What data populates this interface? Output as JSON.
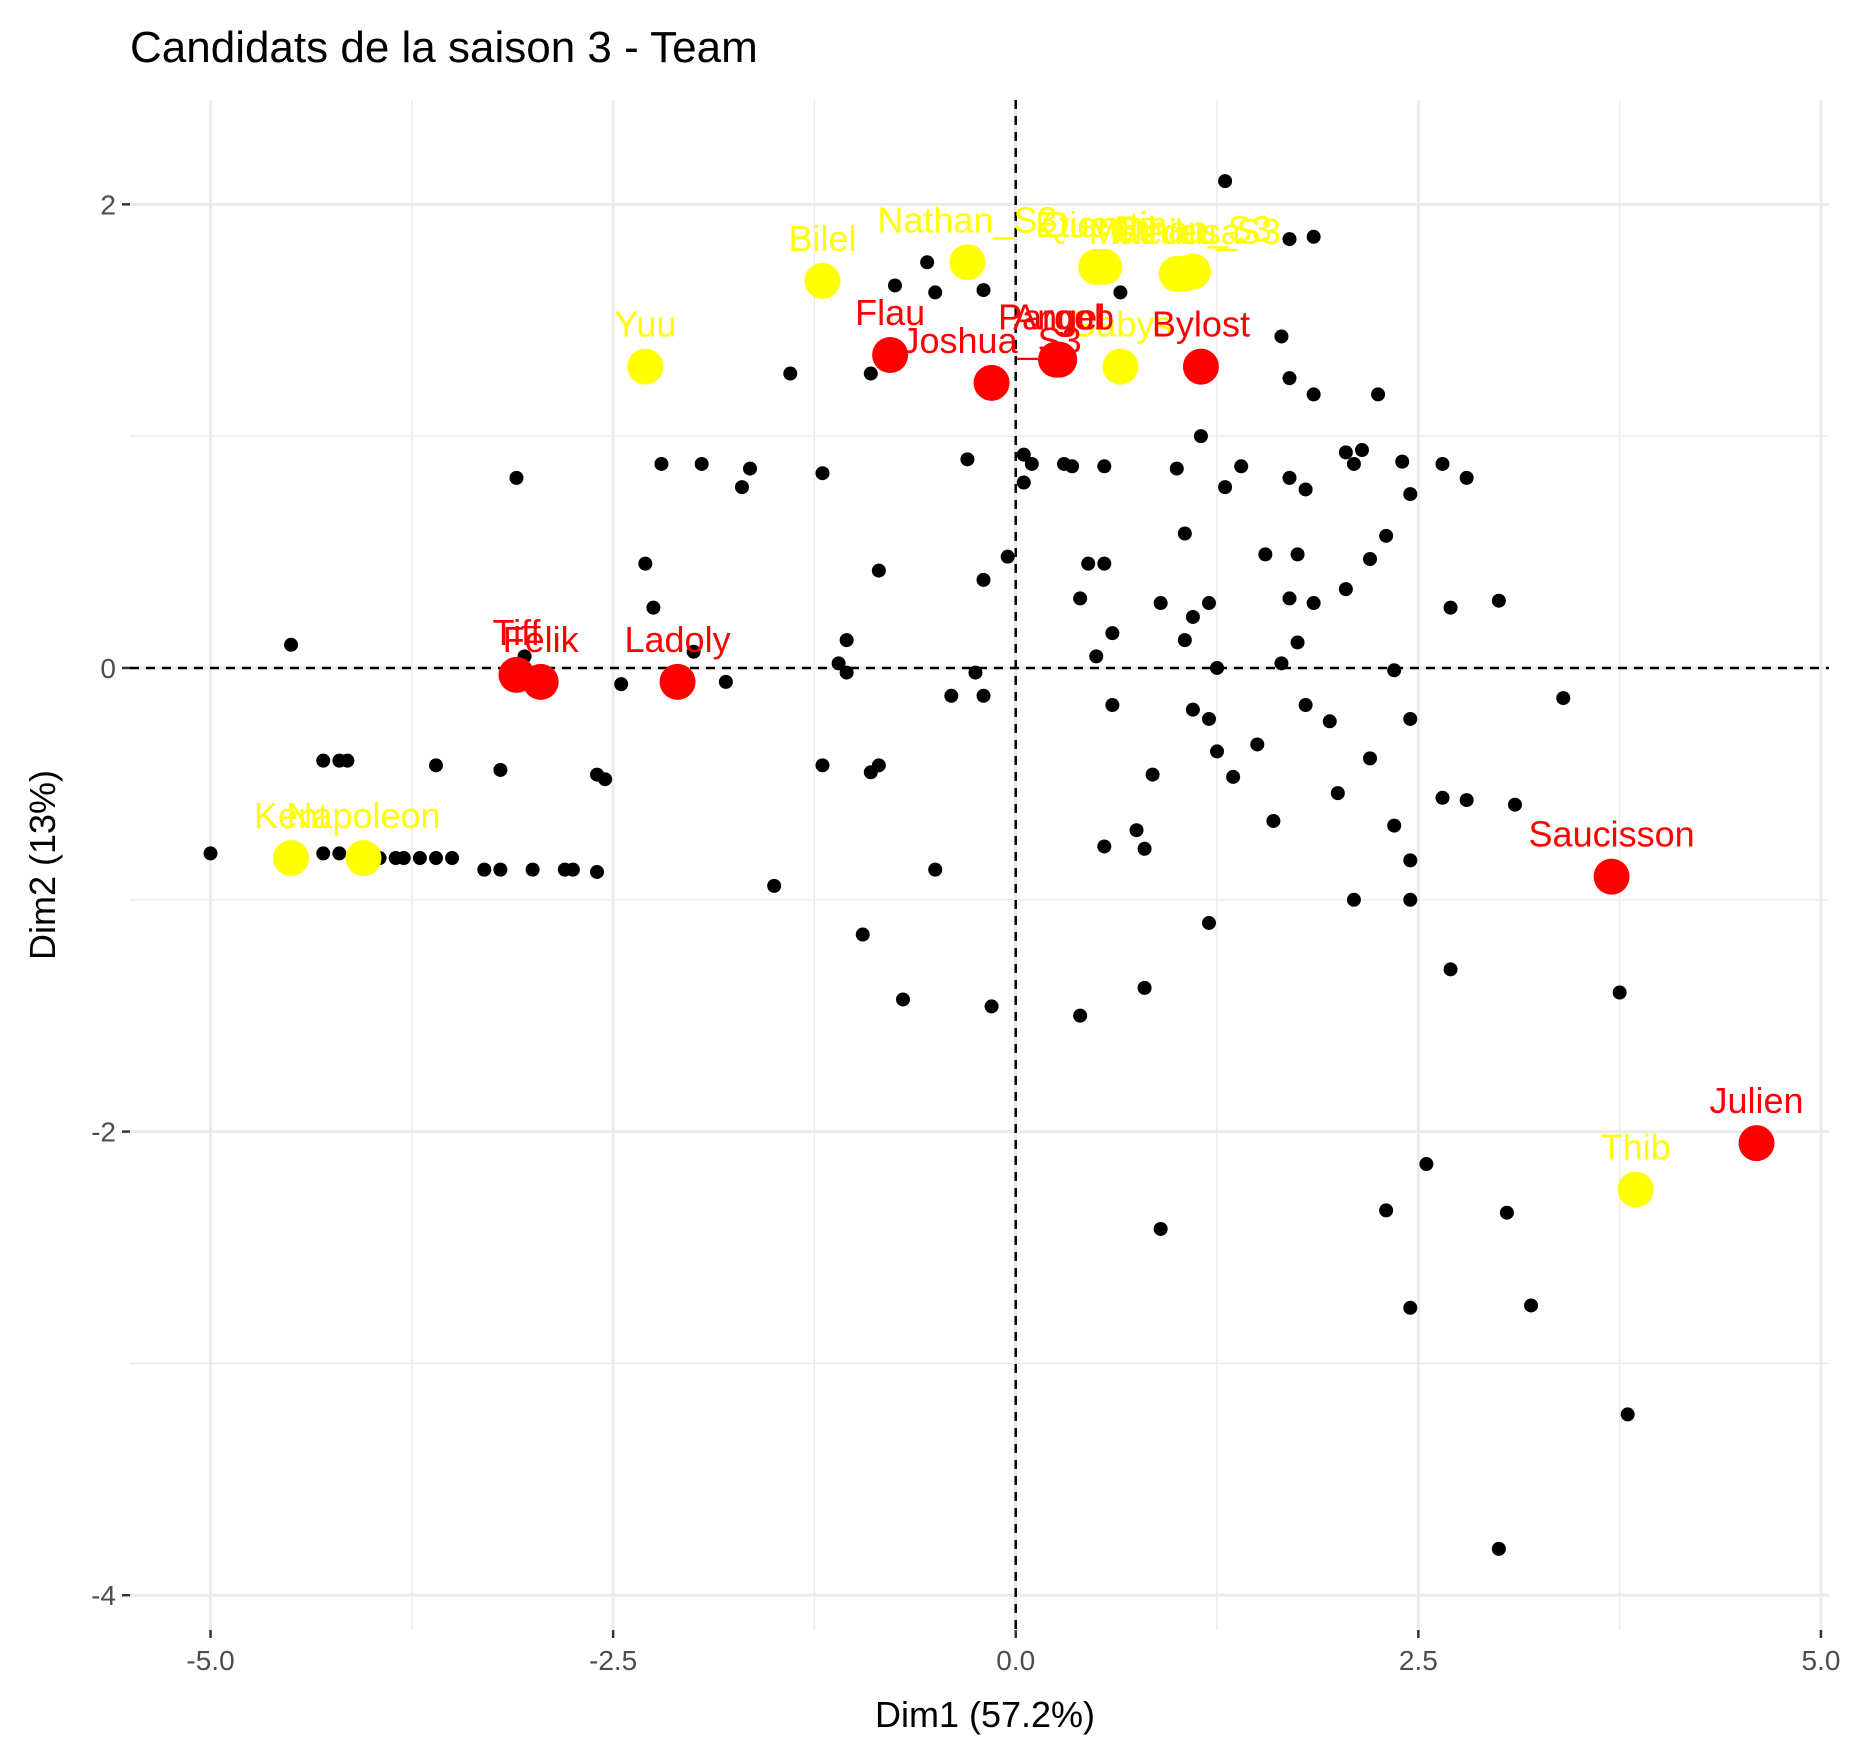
{
  "chart_data": {
    "type": "scatter",
    "title": "Candidats de la saison 3 - Team",
    "xlabel": "Dim1 (57.2%)",
    "ylabel": "Dim2 (13%)",
    "xlim": [
      -5.5,
      5.05
    ],
    "ylim": [
      -4.15,
      2.45
    ],
    "x_ticks": [
      -5.0,
      -2.5,
      0.0,
      2.5,
      5.0
    ],
    "x_tick_labels": [
      "-5.0",
      "-2.5",
      "0.0",
      "2.5",
      "5.0"
    ],
    "y_ticks": [
      -4,
      -2,
      0,
      2
    ],
    "y_tick_labels": [
      "-4",
      "-2",
      "0",
      "2"
    ],
    "grid": true,
    "reference_lines": {
      "x": 0,
      "y": 0,
      "style": "dashed"
    },
    "colors": {
      "individual": "#000000",
      "yellow_group": "#ffff00",
      "red_group": "#ff0000",
      "grid": "#ebebeb"
    },
    "background_points": [
      [
        -5.0,
        -0.8
      ],
      [
        -4.5,
        0.1
      ],
      [
        -4.3,
        -0.4
      ],
      [
        -4.2,
        -0.4
      ],
      [
        -4.15,
        -0.4
      ],
      [
        -4.45,
        -0.8
      ],
      [
        -4.3,
        -0.8
      ],
      [
        -4.2,
        -0.8
      ],
      [
        -4.1,
        -0.8
      ],
      [
        -4.0,
        -0.8
      ],
      [
        -3.95,
        -0.82
      ],
      [
        -3.85,
        -0.82
      ],
      [
        -3.8,
        -0.82
      ],
      [
        -3.7,
        -0.82
      ],
      [
        -3.6,
        -0.82
      ],
      [
        -3.5,
        -0.82
      ],
      [
        -3.6,
        -0.42
      ],
      [
        -3.3,
        -0.87
      ],
      [
        -3.2,
        -0.87
      ],
      [
        -3.0,
        -0.87
      ],
      [
        -2.8,
        -0.87
      ],
      [
        -2.75,
        -0.87
      ],
      [
        -3.2,
        -0.44
      ],
      [
        -3.1,
        0.82
      ],
      [
        -3.05,
        0.05
      ],
      [
        -2.6,
        -0.46
      ],
      [
        -2.55,
        -0.48
      ],
      [
        -2.6,
        -0.88
      ],
      [
        -2.45,
        -0.07
      ],
      [
        -2.3,
        0.45
      ],
      [
        -2.25,
        0.26
      ],
      [
        -2.2,
        0.88
      ],
      [
        -2.0,
        0.07
      ],
      [
        -1.95,
        0.88
      ],
      [
        -1.8,
        -0.06
      ],
      [
        -1.7,
        0.78
      ],
      [
        -1.65,
        0.86
      ],
      [
        -1.5,
        -0.94
      ],
      [
        -1.4,
        1.27
      ],
      [
        -1.2,
        0.84
      ],
      [
        -1.2,
        -0.42
      ],
      [
        -1.1,
        0.02
      ],
      [
        -1.05,
        0.12
      ],
      [
        -1.05,
        -0.02
      ],
      [
        -0.9,
        -0.45
      ],
      [
        -0.85,
        -0.42
      ],
      [
        -0.85,
        0.42
      ],
      [
        -0.9,
        1.27
      ],
      [
        -0.95,
        -1.15
      ],
      [
        -0.75,
        1.65
      ],
      [
        -0.7,
        -1.43
      ],
      [
        -0.55,
        1.75
      ],
      [
        -0.5,
        1.62
      ],
      [
        -0.5,
        -0.87
      ],
      [
        -0.4,
        -0.12
      ],
      [
        -0.3,
        0.9
      ],
      [
        -0.25,
        -0.02
      ],
      [
        -0.2,
        1.63
      ],
      [
        -0.2,
        -0.12
      ],
      [
        -0.2,
        0.38
      ],
      [
        -0.15,
        -1.46
      ],
      [
        -0.05,
        0.48
      ],
      [
        0.05,
        0.92
      ],
      [
        0.05,
        0.8
      ],
      [
        0.1,
        0.88
      ],
      [
        0.3,
        0.88
      ],
      [
        0.35,
        0.87
      ],
      [
        0.4,
        -1.5
      ],
      [
        0.4,
        0.3
      ],
      [
        0.45,
        0.45
      ],
      [
        0.5,
        0.05
      ],
      [
        0.55,
        0.45
      ],
      [
        0.55,
        0.87
      ],
      [
        0.55,
        -0.77
      ],
      [
        0.6,
        0.15
      ],
      [
        0.6,
        -0.16
      ],
      [
        0.65,
        1.62
      ],
      [
        0.75,
        -0.7
      ],
      [
        0.8,
        -0.78
      ],
      [
        0.8,
        -1.38
      ],
      [
        0.85,
        -0.46
      ],
      [
        0.9,
        0.28
      ],
      [
        0.9,
        -2.42
      ],
      [
        1.0,
        0.86
      ],
      [
        1.05,
        0.58
      ],
      [
        1.05,
        0.12
      ],
      [
        1.1,
        0.22
      ],
      [
        1.1,
        -0.18
      ],
      [
        1.15,
        1.0
      ],
      [
        1.2,
        0.28
      ],
      [
        1.2,
        -0.22
      ],
      [
        1.2,
        -1.1
      ],
      [
        1.25,
        -0.36
      ],
      [
        1.25,
        0.0
      ],
      [
        1.3,
        2.1
      ],
      [
        1.3,
        0.78
      ],
      [
        1.35,
        -0.47
      ],
      [
        1.4,
        0.87
      ],
      [
        1.5,
        -0.33
      ],
      [
        1.55,
        0.49
      ],
      [
        1.6,
        -0.66
      ],
      [
        1.65,
        1.43
      ],
      [
        1.65,
        0.02
      ],
      [
        1.7,
        1.85
      ],
      [
        1.7,
        1.25
      ],
      [
        1.7,
        0.82
      ],
      [
        1.7,
        0.3
      ],
      [
        1.75,
        0.49
      ],
      [
        1.75,
        0.11
      ],
      [
        1.8,
        -0.16
      ],
      [
        1.8,
        0.77
      ],
      [
        1.85,
        1.86
      ],
      [
        1.85,
        1.18
      ],
      [
        1.85,
        0.28
      ],
      [
        1.95,
        -0.23
      ],
      [
        2.0,
        -0.54
      ],
      [
        2.05,
        0.34
      ],
      [
        2.05,
        0.93
      ],
      [
        2.1,
        -1.0
      ],
      [
        2.1,
        0.88
      ],
      [
        2.15,
        0.94
      ],
      [
        2.2,
        0.47
      ],
      [
        2.2,
        -0.39
      ],
      [
        2.25,
        1.18
      ],
      [
        2.3,
        0.57
      ],
      [
        2.3,
        -2.34
      ],
      [
        2.35,
        -0.01
      ],
      [
        2.35,
        -0.68
      ],
      [
        2.4,
        0.89
      ],
      [
        2.45,
        0.75
      ],
      [
        2.45,
        -0.22
      ],
      [
        2.45,
        -0.83
      ],
      [
        2.45,
        -1.0
      ],
      [
        2.45,
        -2.76
      ],
      [
        2.55,
        -2.14
      ],
      [
        2.65,
        0.88
      ],
      [
        2.65,
        -0.56
      ],
      [
        2.7,
        -1.3
      ],
      [
        2.7,
        0.26
      ],
      [
        2.8,
        0.82
      ],
      [
        2.8,
        -0.57
      ],
      [
        3.0,
        0.29
      ],
      [
        3.05,
        -2.35
      ],
      [
        3.1,
        -0.59
      ],
      [
        3.2,
        -2.75
      ],
      [
        3.4,
        -0.13
      ],
      [
        3.75,
        -1.4
      ],
      [
        3.8,
        -3.22
      ],
      [
        3.0,
        -3.8
      ]
    ],
    "series": [
      {
        "name": "",
        "color": "#ffff00",
        "points": [
          {
            "label": "Yuu",
            "x": -2.3,
            "y": 1.3
          },
          {
            "label": "Bilel",
            "x": -1.2,
            "y": 1.67
          },
          {
            "label": "Nathan_S3",
            "x": -0.3,
            "y": 1.75
          },
          {
            "label": "Etienne",
            "x": 0.5,
            "y": 1.73
          },
          {
            "label": "Quentin",
            "x": 0.55,
            "y": 1.73
          },
          {
            "label": "Medusa",
            "x": 1.0,
            "y": 1.7
          },
          {
            "label": "Mathieu_S3",
            "x": 1.05,
            "y": 1.7
          },
          {
            "label": "Ethan_S3",
            "x": 1.1,
            "y": 1.71
          },
          {
            "label": "Gabys",
            "x": 0.65,
            "y": 1.3
          },
          {
            "label": "Kent",
            "x": -4.5,
            "y": -0.82
          },
          {
            "label": "Napoleon",
            "x": -4.05,
            "y": -0.82
          },
          {
            "label": "Thib",
            "x": 3.85,
            "y": -2.25
          }
        ]
      },
      {
        "name": "",
        "color": "#ff0000",
        "points": [
          {
            "label": "Flau",
            "x": -0.78,
            "y": 1.35
          },
          {
            "label": "Joshua_S3",
            "x": -0.15,
            "y": 1.23
          },
          {
            "label": "Pargob",
            "x": 0.25,
            "y": 1.33
          },
          {
            "label": "Angel",
            "x": 0.27,
            "y": 1.33
          },
          {
            "label": "Bylost",
            "x": 1.15,
            "y": 1.3
          },
          {
            "label": "Tiff",
            "x": -3.1,
            "y": -0.03
          },
          {
            "label": "Felik",
            "x": -2.95,
            "y": -0.06
          },
          {
            "label": "Ladoly",
            "x": -2.1,
            "y": -0.06
          },
          {
            "label": "Saucisson",
            "x": 3.7,
            "y": -0.9
          },
          {
            "label": "Julien",
            "x": 4.6,
            "y": -2.05
          }
        ]
      }
    ]
  }
}
